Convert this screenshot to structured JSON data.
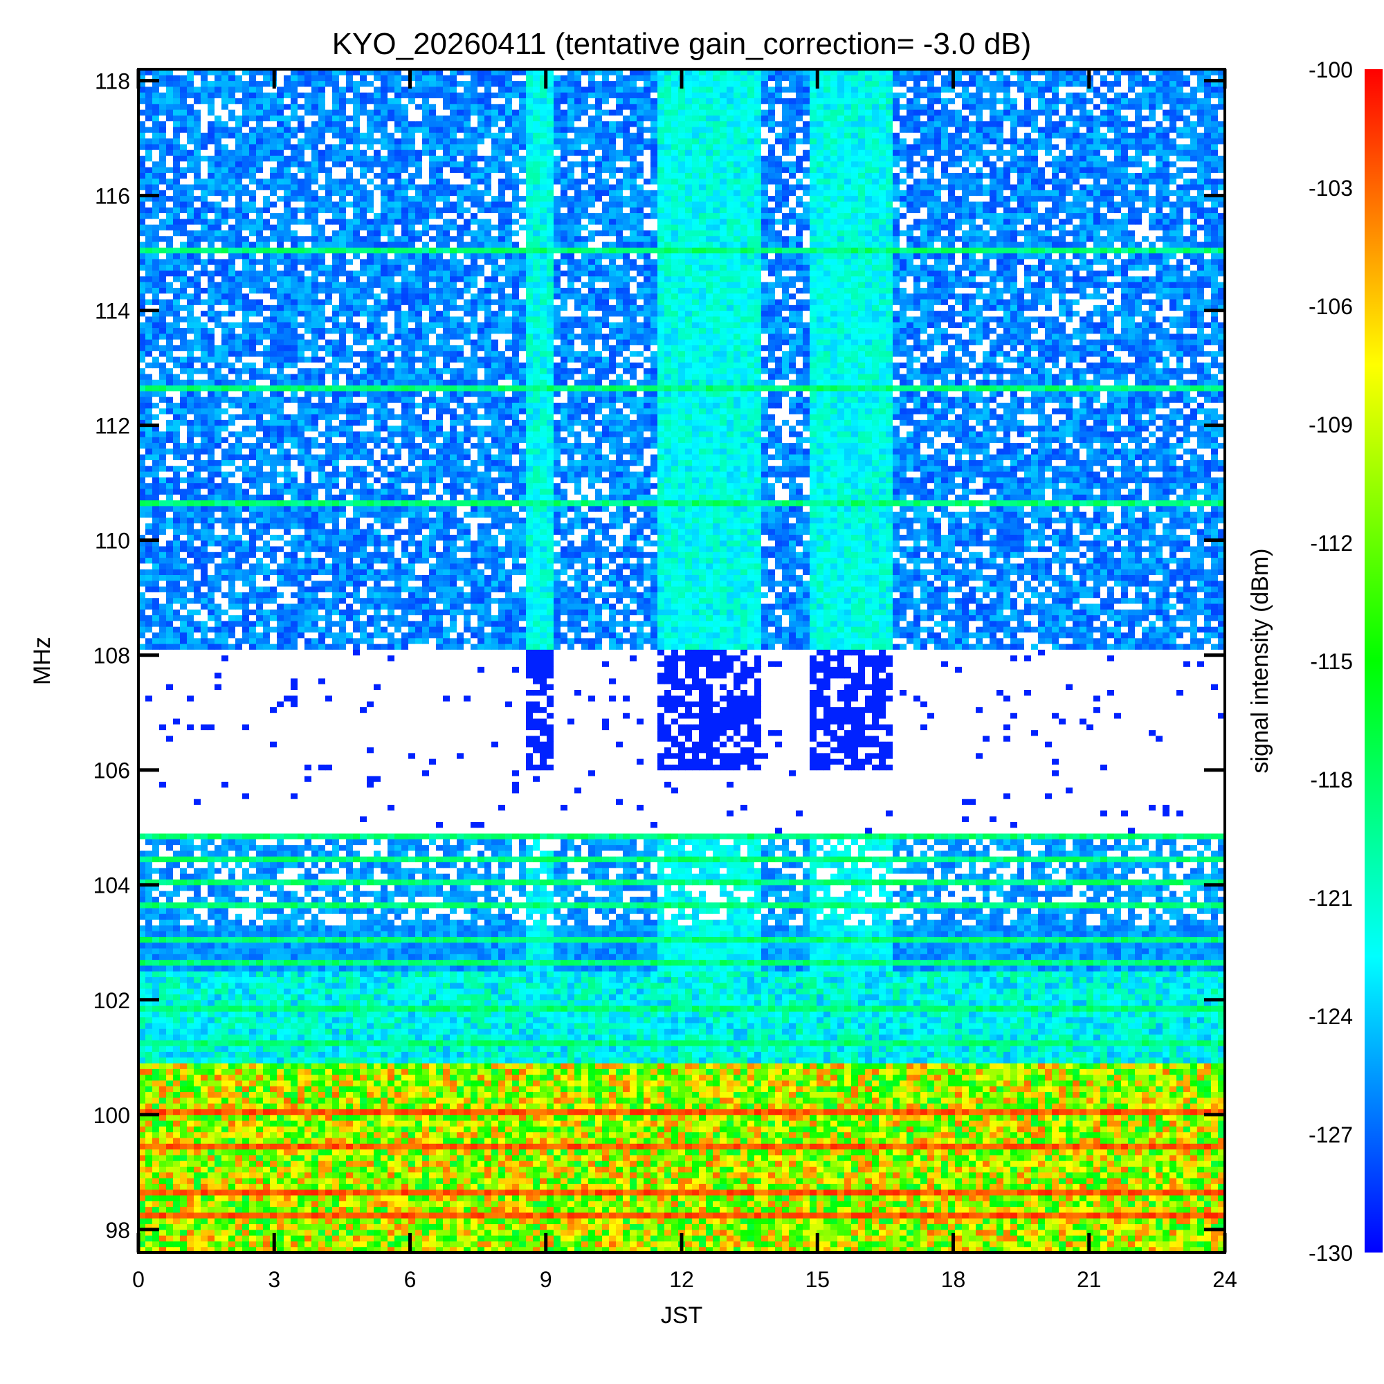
{
  "chart_data": {
    "type": "heatmap",
    "title": "KYO_20260411 (tentative gain_correction= -3.0 dB)",
    "xlabel": "JST",
    "ylabel": "MHz",
    "colorbar_label": "signal intensity (dBm)",
    "x_range": [
      0,
      24
    ],
    "y_range": [
      97.6,
      118.2
    ],
    "color_range": [
      -130,
      -100
    ],
    "x_ticks": [
      "0",
      "3",
      "6",
      "9",
      "12",
      "15",
      "18",
      "21",
      "24"
    ],
    "y_ticks": [
      "118",
      "116",
      "114",
      "112",
      "110",
      "108",
      "106",
      "104",
      "102",
      "100",
      "98"
    ],
    "colorbar_ticks": [
      "-100",
      "-103",
      "-106",
      "-109",
      "-112",
      "-115",
      "-118",
      "-121",
      "-124",
      "-127",
      "-130"
    ],
    "colormap": [
      "#0000ff",
      "#0080ff",
      "#00ffff",
      "#00ff80",
      "#00ff00",
      "#80ff00",
      "#ffff00",
      "#ff8000",
      "#ff0000"
    ],
    "data_gap_hours": [
      3.0,
      3.1
    ],
    "broadband_noise_regions_hours": [
      [
        8.5,
        9.2
      ],
      [
        11.4,
        13.8
      ],
      [
        14.9,
        16.6
      ]
    ],
    "strong_carrier_mhz": [
      100.0,
      98.2,
      98.6,
      99.4
    ],
    "moderate_carrier_mhz": [
      110.6,
      112.6,
      115.0,
      104.0,
      103.6,
      104.4,
      104.8,
      103.0,
      102.6,
      101.8,
      101.2
    ]
  }
}
